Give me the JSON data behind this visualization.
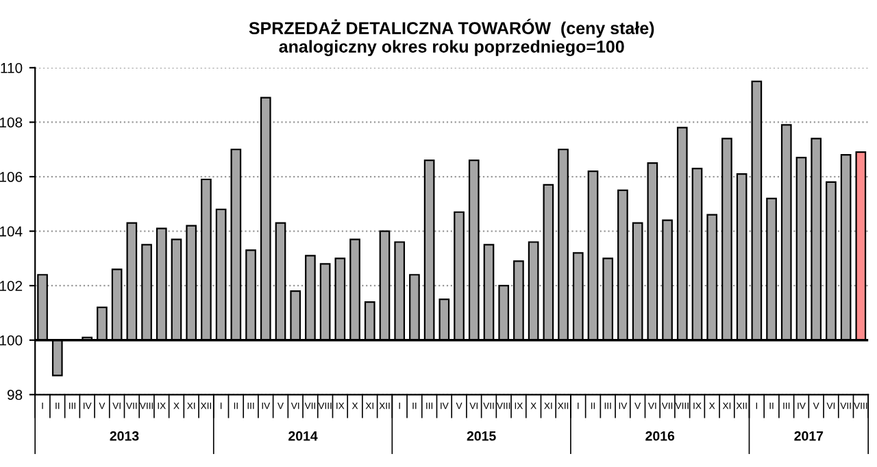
{
  "chart_data": {
    "type": "bar",
    "title": "SPRZEDAŻ DETALICZNA TOWARÓW  (ceny stałe)\nanalogiczny okres roku poprzedniego=100",
    "categories": [
      "I",
      "II",
      "III",
      "IV",
      "V",
      "VI",
      "VII",
      "VIII",
      "IX",
      "X",
      "XI",
      "XII",
      "I",
      "II",
      "III",
      "IV",
      "V",
      "VI",
      "VII",
      "VIII",
      "IX",
      "X",
      "XI",
      "XII",
      "I",
      "II",
      "III",
      "IV",
      "V",
      "VI",
      "VII",
      "VIII",
      "IX",
      "X",
      "XI",
      "XII",
      "I",
      "II",
      "III",
      "IV",
      "V",
      "VI",
      "VII",
      "VIII",
      "IX",
      "X",
      "XI",
      "XII",
      "I",
      "II",
      "III",
      "IV",
      "V",
      "VI",
      "VII",
      "VIII"
    ],
    "values": [
      2.4,
      -1.3,
      null,
      0.1,
      1.2,
      2.6,
      4.3,
      3.5,
      4.1,
      3.7,
      4.2,
      5.9,
      4.8,
      7.0,
      3.3,
      8.9,
      4.3,
      1.8,
      3.1,
      2.8,
      3.0,
      3.7,
      1.4,
      4.0,
      3.6,
      2.4,
      6.6,
      1.5,
      4.7,
      6.6,
      3.5,
      2.0,
      2.9,
      3.6,
      5.7,
      7.0,
      3.2,
      6.2,
      3.0,
      5.5,
      4.3,
      6.5,
      4.4,
      7.8,
      6.3,
      4.6,
      7.4,
      6.1,
      9.5,
      5.2,
      7.9,
      6.7,
      7.4,
      5.8,
      6.8,
      6.9
    ],
    "base": [
      100,
      100,
      null,
      100,
      100,
      100,
      100,
      100,
      100,
      100,
      100,
      100,
      100,
      100,
      100,
      100,
      100,
      100,
      100,
      100,
      100,
      100,
      100,
      100,
      100,
      100,
      100,
      100,
      100,
      100,
      100,
      100,
      100,
      100,
      100,
      100,
      100,
      100,
      100,
      100,
      100,
      100,
      100,
      100,
      100,
      100,
      100,
      100,
      100,
      100,
      100,
      100,
      100,
      100,
      100,
      100
    ],
    "colors": [
      "#a6a6a6",
      "#a6a6a6",
      "#a6a6a6",
      "#a6a6a6",
      "#a6a6a6",
      "#a6a6a6",
      "#a6a6a6",
      "#a6a6a6",
      "#a6a6a6",
      "#a6a6a6",
      "#a6a6a6",
      "#a6a6a6",
      "#a6a6a6",
      "#a6a6a6",
      "#a6a6a6",
      "#a6a6a6",
      "#a6a6a6",
      "#a6a6a6",
      "#a6a6a6",
      "#a6a6a6",
      "#a6a6a6",
      "#a6a6a6",
      "#a6a6a6",
      "#a6a6a6",
      "#a6a6a6",
      "#a6a6a6",
      "#a6a6a6",
      "#a6a6a6",
      "#a6a6a6",
      "#a6a6a6",
      "#a6a6a6",
      "#a6a6a6",
      "#a6a6a6",
      "#a6a6a6",
      "#a6a6a6",
      "#a6a6a6",
      "#a6a6a6",
      "#a6a6a6",
      "#a6a6a6",
      "#a6a6a6",
      "#a6a6a6",
      "#a6a6a6",
      "#a6a6a6",
      "#a6a6a6",
      "#a6a6a6",
      "#a6a6a6",
      "#a6a6a6",
      "#a6a6a6",
      "#a6a6a6",
      "#a6a6a6",
      "#a6a6a6",
      "#a6a6a6",
      "#a6a6a6",
      "#a6a6a6",
      "#a6a6a6",
      "#ff8c8c"
    ],
    "ylim": [
      98,
      110
    ],
    "yticks": [
      98,
      100,
      102,
      104,
      106,
      108,
      110
    ],
    "grid": "y",
    "ref_lines": [
      {
        "axis": "y",
        "value": 100,
        "color": "#000000"
      }
    ],
    "annotations": [
      "2013",
      "2014",
      "2015",
      "2016",
      "2017"
    ]
  }
}
